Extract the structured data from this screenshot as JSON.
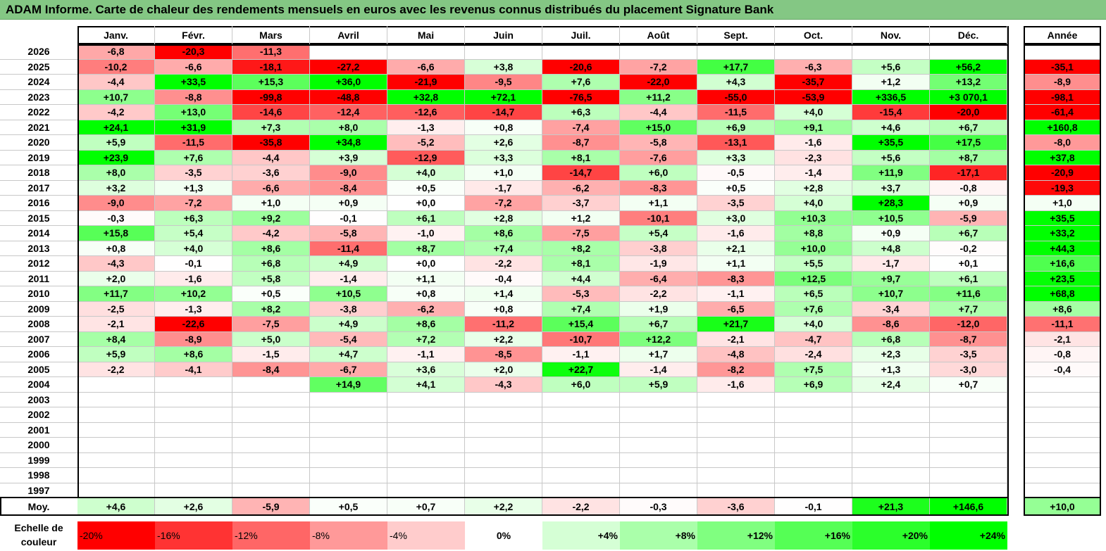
{
  "title": "ADAM Informe. Carte de chaleur des rendements mensuels en euros avec les revenus connus distribués du placement Signature Bank",
  "colors": {
    "title_bg": "#84c784"
  },
  "chart_data": {
    "type": "heatmap",
    "months": [
      "Janv.",
      "Févr.",
      "Mars",
      "Avril",
      "Mai",
      "Juin",
      "Juil.",
      "Août",
      "Sept.",
      "Oct.",
      "Nov.",
      "Déc."
    ],
    "year_header": "Année",
    "avg_label": "Moy.",
    "rows": [
      {
        "year": "2026",
        "months": [
          "-6,8",
          "-20,3",
          "-11,3",
          "",
          "",
          "",
          "",
          "",
          "",
          "",
          "",
          ""
        ],
        "total": ""
      },
      {
        "year": "2025",
        "months": [
          "-10,2",
          "-6,6",
          "-18,1",
          "-27,2",
          "-6,6",
          "+3,8",
          "-20,6",
          "-7,2",
          "+17,7",
          "-6,3",
          "+5,6",
          "+56,2"
        ],
        "total": "-35,1"
      },
      {
        "year": "2024",
        "months": [
          "-4,4",
          "+33,5",
          "+15,3",
          "+36,0",
          "-21,9",
          "-9,5",
          "+7,6",
          "-22,0",
          "+4,3",
          "-35,7",
          "+1,2",
          "+13,2"
        ],
        "total": "-8,9"
      },
      {
        "year": "2023",
        "months": [
          "+10,7",
          "-8,8",
          "-99,8",
          "-48,8",
          "+32,8",
          "+72,1",
          "-76,5",
          "+11,2",
          "-55,0",
          "-53,9",
          "+336,5",
          "+3 070,1"
        ],
        "total": "-98,1"
      },
      {
        "year": "2022",
        "months": [
          "-4,2",
          "+13,0",
          "-14,6",
          "-12,4",
          "-12,6",
          "-14,7",
          "+6,3",
          "-4,4",
          "-11,5",
          "+4,0",
          "-15,4",
          "-20,0"
        ],
        "total": "-61,4"
      },
      {
        "year": "2021",
        "months": [
          "+24,1",
          "+31,9",
          "+7,3",
          "+8,0",
          "-1,3",
          "+0,8",
          "-7,4",
          "+15,0",
          "+6,9",
          "+9,1",
          "+4,6",
          "+6,7"
        ],
        "total": "+160,8"
      },
      {
        "year": "2020",
        "months": [
          "+5,9",
          "-11,5",
          "-35,8",
          "+34,8",
          "-5,2",
          "+2,6",
          "-8,7",
          "-5,8",
          "-13,1",
          "-1,6",
          "+35,5",
          "+17,5"
        ],
        "total": "-8,0"
      },
      {
        "year": "2019",
        "months": [
          "+23,9",
          "+7,6",
          "-4,4",
          "+3,9",
          "-12,9",
          "+3,3",
          "+8,1",
          "-7,6",
          "+3,3",
          "-2,3",
          "+5,6",
          "+8,7"
        ],
        "total": "+37,8"
      },
      {
        "year": "2018",
        "months": [
          "+8,0",
          "-3,5",
          "-3,6",
          "-9,0",
          "+4,0",
          "+1,0",
          "-14,7",
          "+6,0",
          "-0,5",
          "-1,4",
          "+11,9",
          "-17,1"
        ],
        "total": "-20,9"
      },
      {
        "year": "2017",
        "months": [
          "+3,2",
          "+1,3",
          "-6,6",
          "-8,4",
          "+0,5",
          "-1,7",
          "-6,2",
          "-8,3",
          "+0,5",
          "+2,8",
          "+3,7",
          "-0,8"
        ],
        "total": "-19,3"
      },
      {
        "year": "2016",
        "months": [
          "-9,0",
          "-7,2",
          "+1,0",
          "+0,9",
          "+0,0",
          "-7,2",
          "-3,7",
          "+1,1",
          "-3,5",
          "+4,0",
          "+28,3",
          "+0,9"
        ],
        "total": "+1,0"
      },
      {
        "year": "2015",
        "months": [
          "-0,3",
          "+6,3",
          "+9,2",
          "-0,1",
          "+6,1",
          "+2,8",
          "+1,2",
          "-10,1",
          "+3,0",
          "+10,3",
          "+10,5",
          "-5,9"
        ],
        "total": "+35,5"
      },
      {
        "year": "2014",
        "months": [
          "+15,8",
          "+5,4",
          "-4,2",
          "-5,8",
          "-1,0",
          "+8,6",
          "-7,5",
          "+5,4",
          "-1,6",
          "+8,8",
          "+0,9",
          "+6,7"
        ],
        "total": "+33,2"
      },
      {
        "year": "2013",
        "months": [
          "+0,8",
          "+4,0",
          "+8,6",
          "-11,4",
          "+8,7",
          "+7,4",
          "+8,2",
          "-3,8",
          "+2,1",
          "+10,0",
          "+4,8",
          "-0,2"
        ],
        "total": "+44,3"
      },
      {
        "year": "2012",
        "months": [
          "-4,3",
          "-0,1",
          "+6,8",
          "+4,9",
          "+0,0",
          "-2,2",
          "+8,1",
          "-1,9",
          "+1,1",
          "+5,5",
          "-1,7",
          "+0,1"
        ],
        "total": "+16,6"
      },
      {
        "year": "2011",
        "months": [
          "+2,0",
          "-1,6",
          "+5,8",
          "-1,4",
          "+1,1",
          "-0,4",
          "+4,4",
          "-6,4",
          "-8,3",
          "+12,5",
          "+9,7",
          "+6,1"
        ],
        "total": "+23,5"
      },
      {
        "year": "2010",
        "months": [
          "+11,7",
          "+10,2",
          "+0,5",
          "+10,5",
          "+0,8",
          "+1,4",
          "-5,3",
          "-2,2",
          "-1,1",
          "+6,5",
          "+10,7",
          "+11,6"
        ],
        "total": "+68,8"
      },
      {
        "year": "2009",
        "months": [
          "-2,5",
          "-1,3",
          "+8,2",
          "-3,8",
          "-6,2",
          "+0,8",
          "+7,4",
          "+1,9",
          "-6,5",
          "+7,6",
          "-3,4",
          "+7,7"
        ],
        "total": "+8,6"
      },
      {
        "year": "2008",
        "months": [
          "-2,1",
          "-22,6",
          "-7,5",
          "+4,9",
          "+8,6",
          "-11,2",
          "+15,4",
          "+6,7",
          "+21,7",
          "+4,0",
          "-8,6",
          "-12,0"
        ],
        "total": "-11,1"
      },
      {
        "year": "2007",
        "months": [
          "+8,4",
          "-8,9",
          "+5,0",
          "-5,4",
          "+7,2",
          "+2,2",
          "-10,7",
          "+12,2",
          "-2,1",
          "-4,7",
          "+6,8",
          "-8,7"
        ],
        "total": "-2,1"
      },
      {
        "year": "2006",
        "months": [
          "+5,9",
          "+8,6",
          "-1,5",
          "+4,7",
          "-1,1",
          "-8,5",
          "-1,1",
          "+1,7",
          "-4,8",
          "-2,4",
          "+2,3",
          "-3,5"
        ],
        "total": "-0,8"
      },
      {
        "year": "2005",
        "months": [
          "-2,2",
          "-4,1",
          "-8,4",
          "-6,7",
          "+3,6",
          "+2,0",
          "+22,7",
          "-1,4",
          "-8,2",
          "+7,5",
          "+1,3",
          "-3,0"
        ],
        "total": "-0,4"
      },
      {
        "year": "2004",
        "months": [
          "",
          "",
          "",
          "+14,9",
          "+4,1",
          "-4,3",
          "+6,0",
          "+5,9",
          "-1,6",
          "+6,9",
          "+2,4",
          "+0,7"
        ],
        "total": ""
      },
      {
        "year": "2003",
        "months": [
          "",
          "",
          "",
          "",
          "",
          "",
          "",
          "",
          "",
          "",
          "",
          ""
        ],
        "total": ""
      },
      {
        "year": "2002",
        "months": [
          "",
          "",
          "",
          "",
          "",
          "",
          "",
          "",
          "",
          "",
          "",
          ""
        ],
        "total": ""
      },
      {
        "year": "2001",
        "months": [
          "",
          "",
          "",
          "",
          "",
          "",
          "",
          "",
          "",
          "",
          "",
          ""
        ],
        "total": ""
      },
      {
        "year": "2000",
        "months": [
          "",
          "",
          "",
          "",
          "",
          "",
          "",
          "",
          "",
          "",
          "",
          ""
        ],
        "total": ""
      },
      {
        "year": "1999",
        "months": [
          "",
          "",
          "",
          "",
          "",
          "",
          "",
          "",
          "",
          "",
          "",
          ""
        ],
        "total": ""
      },
      {
        "year": "1998",
        "months": [
          "",
          "",
          "",
          "",
          "",
          "",
          "",
          "",
          "",
          "",
          "",
          ""
        ],
        "total": ""
      },
      {
        "year": "1997",
        "months": [
          "",
          "",
          "",
          "",
          "",
          "",
          "",
          "",
          "",
          "",
          "",
          ""
        ],
        "total": ""
      }
    ],
    "averages": {
      "months": [
        "+4,6",
        "+2,6",
        "-5,9",
        "+0,5",
        "+0,7",
        "+2,2",
        "-2,2",
        "-0,3",
        "-3,6",
        "-0,1",
        "+21,3",
        "+146,6"
      ],
      "total": "+10,0"
    },
    "scale": {
      "label_line1": "Echelle de",
      "label_line2": "couleur",
      "items": [
        {
          "label": "-20%",
          "value": -20
        },
        {
          "label": "-16%",
          "value": -16
        },
        {
          "label": "-12%",
          "value": -12
        },
        {
          "label": "-8%",
          "value": -8
        },
        {
          "label": "-4%",
          "value": -4
        },
        {
          "label": "0%",
          "value": 0
        },
        {
          "label": "+4%",
          "value": 4
        },
        {
          "label": "+8%",
          "value": 8
        },
        {
          "label": "+12%",
          "value": 12
        },
        {
          "label": "+16%",
          "value": 16
        },
        {
          "label": "+20%",
          "value": 20
        },
        {
          "label": "+24%",
          "value": 24
        }
      ]
    }
  }
}
